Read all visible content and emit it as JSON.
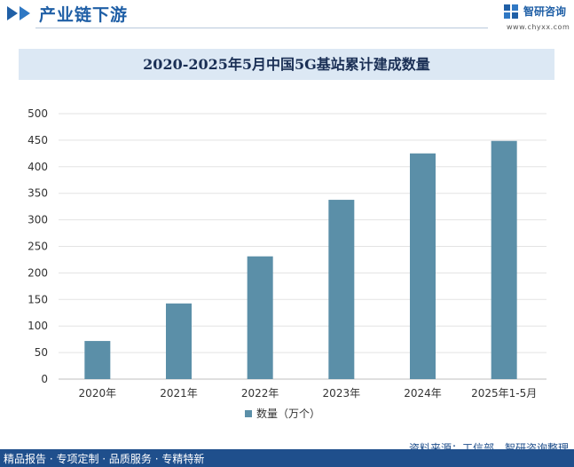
{
  "header": {
    "title": "产业链下游",
    "brand_name": "智研咨询",
    "brand_url": "www.chyxx.com"
  },
  "chart_data": {
    "type": "bar",
    "title": "2020-2025年5月中国5G基站累计建成数量",
    "categories": [
      "2020年",
      "2021年",
      "2022年",
      "2023年",
      "2024年",
      "2025年1-5月"
    ],
    "series": [
      {
        "name": "数量（万个）",
        "values": [
          71.8,
          142.5,
          231.2,
          337.7,
          425.1,
          448.6
        ]
      }
    ],
    "ylim": [
      0,
      500
    ],
    "yticks": [
      0,
      50,
      100,
      150,
      200,
      250,
      300,
      350,
      400,
      450,
      500
    ],
    "grid": true,
    "legend_position": "bottom",
    "bar_color": "#5b8fa8"
  },
  "footer": {
    "left_text": "精品报告 · 专项定制 · 品质服务 · 专精特新",
    "source": "资料来源：工信部、智研咨询整理"
  }
}
